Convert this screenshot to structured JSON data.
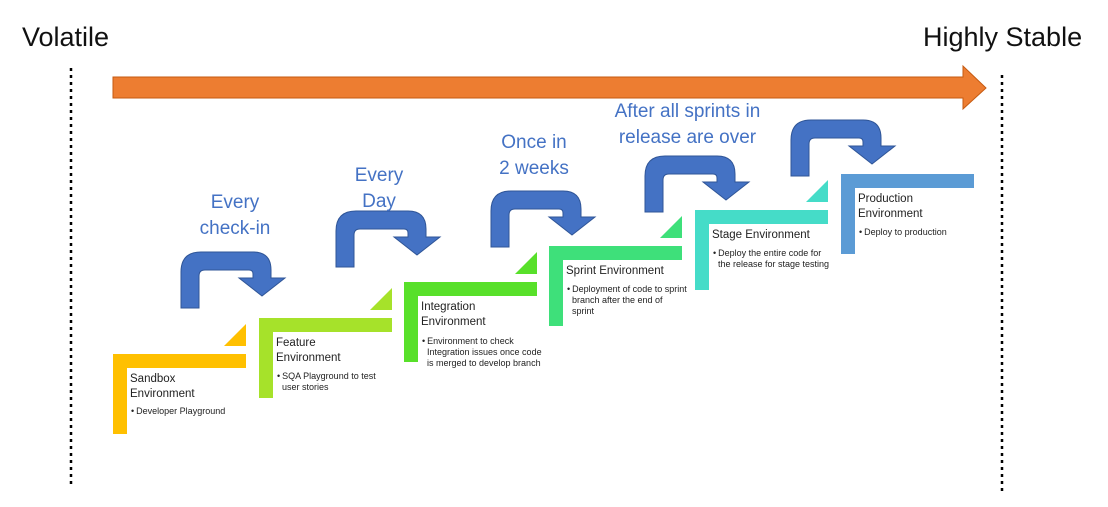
{
  "labels": {
    "left": "Volatile",
    "right": "Highly Stable"
  },
  "colors": {
    "arrow": "#ed7d31",
    "curved_arrow": "#4472c4",
    "frequency_text": "#4472c4",
    "divider": "#000000"
  },
  "environments": [
    {
      "title": "Sandbox\nEnvironment",
      "bullet": "Developer Playground",
      "color": "#ffc000"
    },
    {
      "title": "Feature\nEnvironment",
      "bullet": "SQA Playground to test user stories",
      "color": "#a6e22a"
    },
    {
      "title": "Integration\nEnvironment",
      "bullet": "Environment to check Integration issues once code is merged to develop branch",
      "color": "#58e02a"
    },
    {
      "title": "Sprint Environment",
      "bullet": "Deployment of code to sprint branch after the end of sprint",
      "color": "#3ee07a"
    },
    {
      "title": "Stage Environment",
      "bullet": "Deploy the entire code for the release for stage testing",
      "color": "#45dcc8"
    },
    {
      "title": "Production\nEnvironment",
      "bullet": "Deploy to production",
      "color": "#5b9bd5"
    }
  ],
  "frequencies": [
    {
      "text": "Every\ncheck-in"
    },
    {
      "text": "Every\nDay"
    },
    {
      "text": "Once in\n2 weeks"
    },
    {
      "text": "After all sprints in\nrelease are over"
    }
  ]
}
